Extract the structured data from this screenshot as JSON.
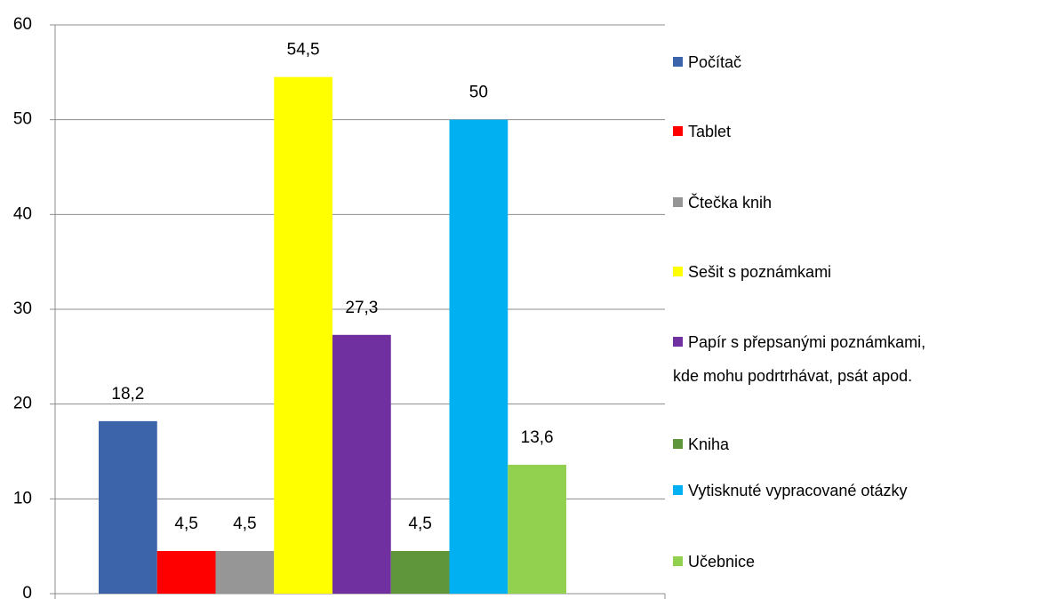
{
  "chart_data": {
    "type": "bar",
    "categories": [
      null
    ],
    "series": [
      {
        "name": "Počítač",
        "color": "#3c64aa",
        "values": [
          18.2
        ],
        "value_labels": [
          "18,2"
        ]
      },
      {
        "name": "Tablet",
        "color": "#ff0000",
        "values": [
          4.5
        ],
        "value_labels": [
          "4,5"
        ]
      },
      {
        "name": "Čtečka knih",
        "color": "#969696",
        "values": [
          4.5
        ],
        "value_labels": [
          "4,5"
        ]
      },
      {
        "name": "Sešit s poznámkami",
        "color": "#ffff00",
        "values": [
          54.5
        ],
        "value_labels": [
          "54,5"
        ]
      },
      {
        "name": "Papír s přepsanými poznámkami, kde mohu podrtrhávat, psát apod.",
        "color": "#7030a0",
        "values": [
          27.3
        ],
        "value_labels": [
          "27,3"
        ]
      },
      {
        "name": "Kniha",
        "color": "#5f963c",
        "values": [
          4.5
        ],
        "value_labels": [
          "4,5"
        ]
      },
      {
        "name": "Vytisknuté vypracované otázky",
        "color": "#00b0f0",
        "values": [
          50
        ],
        "value_labels": [
          "50"
        ]
      },
      {
        "name": "Učebnice",
        "color": "#92d050",
        "values": [
          13.6
        ],
        "value_labels": [
          "13,6"
        ]
      }
    ],
    "ylim": [
      0,
      60
    ],
    "yticks": [
      0,
      10,
      20,
      30,
      40,
      50,
      60
    ],
    "grid": true,
    "legend": "right"
  }
}
